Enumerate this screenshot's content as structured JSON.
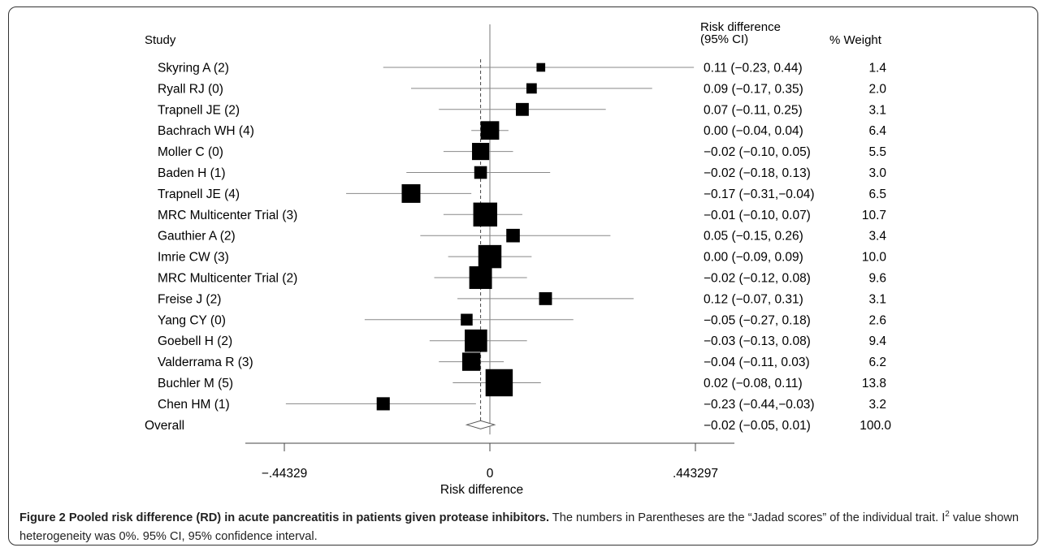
{
  "chart_data": {
    "type": "forest",
    "headers": {
      "study": "Study",
      "rd_line1": "Risk difference",
      "rd_line2": "(95% CI)",
      "weight": "% Weight"
    },
    "xlabel": "Risk difference",
    "xticks": [
      {
        "value": -0.44329,
        "label": "−.44329"
      },
      {
        "value": 0,
        "label": "0"
      },
      {
        "value": 0.443297,
        "label": ".443297"
      }
    ],
    "xlim": [
      -0.527,
      0.527
    ],
    "overall_line": -0.02,
    "studies": [
      {
        "name": "Skyring A (2)",
        "rd": 0.11,
        "lo": -0.23,
        "hi": 0.44,
        "ci_text": "0.11 (−0.23, 0.44)",
        "weight": 1.4,
        "weight_text": "1.4"
      },
      {
        "name": "Ryall RJ (0)",
        "rd": 0.09,
        "lo": -0.17,
        "hi": 0.35,
        "ci_text": "0.09 (−0.17, 0.35)",
        "weight": 2.0,
        "weight_text": "2.0"
      },
      {
        "name": "Trapnell JE (2)",
        "rd": 0.07,
        "lo": -0.11,
        "hi": 0.25,
        "ci_text": "0.07 (−0.11, 0.25)",
        "weight": 3.1,
        "weight_text": "3.1"
      },
      {
        "name": "Bachrach WH (4)",
        "rd": 0.0,
        "lo": -0.04,
        "hi": 0.04,
        "ci_text": "0.00 (−0.04, 0.04)",
        "weight": 6.4,
        "weight_text": "6.4"
      },
      {
        "name": "Moller C (0)",
        "rd": -0.02,
        "lo": -0.1,
        "hi": 0.05,
        "ci_text": "−0.02 (−0.10, 0.05)",
        "weight": 5.5,
        "weight_text": "5.5"
      },
      {
        "name": "Baden H (1)",
        "rd": -0.02,
        "lo": -0.18,
        "hi": 0.13,
        "ci_text": "−0.02 (−0.18, 0.13)",
        "weight": 3.0,
        "weight_text": "3.0"
      },
      {
        "name": "Trapnell JE (4)",
        "rd": -0.17,
        "lo": -0.31,
        "hi": -0.04,
        "ci_text": "−0.17 (−0.31,−0.04)",
        "weight": 6.5,
        "weight_text": "6.5"
      },
      {
        "name": "MRC Multicenter Trial (3)",
        "rd": -0.01,
        "lo": -0.1,
        "hi": 0.07,
        "ci_text": "−0.01 (−0.10, 0.07)",
        "weight": 10.7,
        "weight_text": "10.7"
      },
      {
        "name": "Gauthier A (2)",
        "rd": 0.05,
        "lo": -0.15,
        "hi": 0.26,
        "ci_text": "0.05 (−0.15, 0.26)",
        "weight": 3.4,
        "weight_text": "3.4"
      },
      {
        "name": "Imrie CW (3)",
        "rd": 0.0,
        "lo": -0.09,
        "hi": 0.09,
        "ci_text": "0.00 (−0.09, 0.09)",
        "weight": 10.0,
        "weight_text": "10.0"
      },
      {
        "name": "MRC Multicenter Trial (2)",
        "rd": -0.02,
        "lo": -0.12,
        "hi": 0.08,
        "ci_text": "−0.02 (−0.12, 0.08)",
        "weight": 9.6,
        "weight_text": "9.6"
      },
      {
        "name": "Freise J (2)",
        "rd": 0.12,
        "lo": -0.07,
        "hi": 0.31,
        "ci_text": "0.12 (−0.07, 0.31)",
        "weight": 3.1,
        "weight_text": "3.1"
      },
      {
        "name": "Yang CY (0)",
        "rd": -0.05,
        "lo": -0.27,
        "hi": 0.18,
        "ci_text": "−0.05 (−0.27, 0.18)",
        "weight": 2.6,
        "weight_text": "2.6"
      },
      {
        "name": "Goebell H (2)",
        "rd": -0.03,
        "lo": -0.13,
        "hi": 0.08,
        "ci_text": "−0.03 (−0.13, 0.08)",
        "weight": 9.4,
        "weight_text": "9.4"
      },
      {
        "name": "Valderrama R (3)",
        "rd": -0.04,
        "lo": -0.11,
        "hi": 0.03,
        "ci_text": "−0.04 (−0.11, 0.03)",
        "weight": 6.2,
        "weight_text": "6.2"
      },
      {
        "name": "Buchler M (5)",
        "rd": 0.02,
        "lo": -0.08,
        "hi": 0.11,
        "ci_text": "0.02 (−0.08, 0.11)",
        "weight": 13.8,
        "weight_text": "13.8"
      },
      {
        "name": "Chen HM (1)",
        "rd": -0.23,
        "lo": -0.44,
        "hi": -0.03,
        "ci_text": "−0.23 (−0.44,−0.03)",
        "weight": 3.2,
        "weight_text": "3.2"
      }
    ],
    "overall": {
      "name": "Overall",
      "rd": -0.02,
      "lo": -0.05,
      "hi": 0.01,
      "ci_text": "−0.02 (−0.05, 0.01)",
      "weight_text": "100.0"
    }
  },
  "caption": {
    "figure_label": "Figure 2 Pooled risk difference (RD) in acute pancreatitis in patients given protease inhibitors.",
    "text_part1": " The numbers in Parentheses are the “Jadad scores” of the individual trait. I",
    "superscript": "2",
    "text_part2": " value shown heterogeneity was 0%. 95% CI, 95% confidence interval."
  }
}
